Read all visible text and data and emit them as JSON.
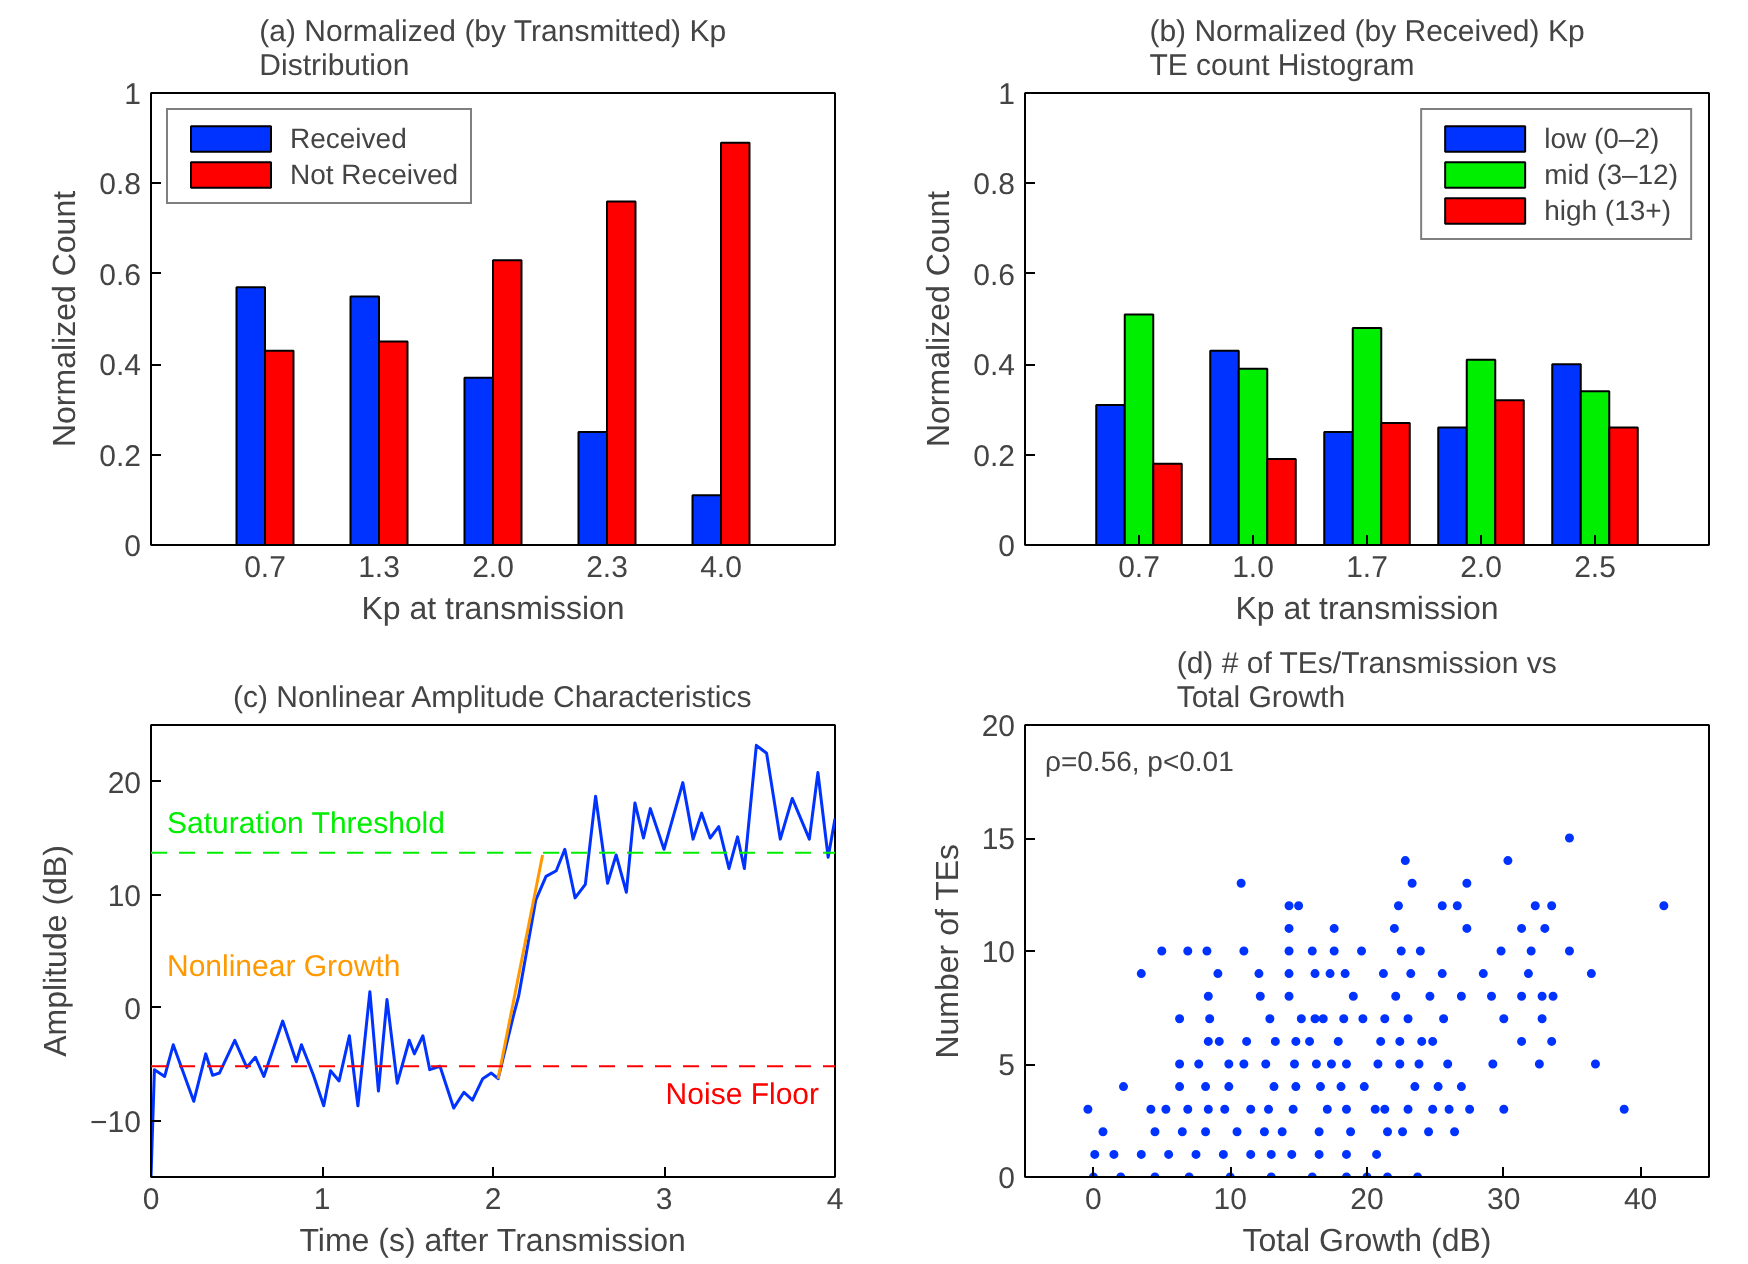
{
  "chart_data": [
    {
      "type": "bar",
      "title": "(a) Normalized (by Transmitted) Kp\nDistribution",
      "xlabel": "Kp at transmission",
      "ylabel": "Normalized Count",
      "categories": [
        "0.7",
        "1.3",
        "2.0",
        "2.3",
        "4.0"
      ],
      "series": [
        {
          "name": "Received",
          "color": "#0033ff",
          "values": [
            0.57,
            0.55,
            0.37,
            0.25,
            0.11
          ]
        },
        {
          "name": "Not Received",
          "color": "#ff0000",
          "values": [
            0.43,
            0.45,
            0.63,
            0.76,
            0.89
          ]
        }
      ],
      "ylim": [
        0,
        1
      ],
      "yticks": [
        0,
        0.2,
        0.4,
        0.6,
        0.8,
        1
      ],
      "legend": "top left"
    },
    {
      "type": "bar",
      "title": "(b) Normalized (by Received) Kp\nTE count Histogram",
      "xlabel": "Kp at transmission",
      "ylabel": "Normalized Count",
      "categories": [
        "0.7",
        "1.0",
        "1.7",
        "2.0",
        "2.5"
      ],
      "series": [
        {
          "name": "low (0–2)",
          "color": "#0033ff",
          "values": [
            0.31,
            0.43,
            0.25,
            0.26,
            0.4
          ]
        },
        {
          "name": "mid (3–12)",
          "color": "#00ee00",
          "values": [
            0.51,
            0.39,
            0.48,
            0.41,
            0.34
          ]
        },
        {
          "name": "high (13+)",
          "color": "#ff0000",
          "values": [
            0.18,
            0.19,
            0.27,
            0.32,
            0.26
          ]
        }
      ],
      "ylim": [
        0,
        1
      ],
      "yticks": [
        0,
        0.2,
        0.4,
        0.6,
        0.8,
        1
      ],
      "legend": "top right"
    },
    {
      "type": "line",
      "title": "(c) Nonlinear Amplitude Characteristics",
      "xlabel": "Time (s) after Transmission",
      "ylabel": "Amplitude (dB)",
      "series": [
        {
          "color": "#0033ff",
          "x": [
            0,
            0.02,
            0.08,
            0.13,
            0.25,
            0.32,
            0.36,
            0.4,
            0.49,
            0.56,
            0.61,
            0.66,
            0.77,
            0.85,
            0.88,
            0.95,
            1.01,
            1.05,
            1.1,
            1.16,
            1.21,
            1.28,
            1.33,
            1.38,
            1.44,
            1.51,
            1.54,
            1.59,
            1.63,
            1.69,
            1.77,
            1.83,
            1.88,
            1.94,
            1.99,
            2.03,
            2.12,
            2.15,
            2.25,
            2.31,
            2.37,
            2.42,
            2.48,
            2.54,
            2.6,
            2.67,
            2.72,
            2.78,
            2.83,
            2.88,
            2.92,
            3.0,
            3.11,
            3.17,
            3.22,
            3.27,
            3.32,
            3.38,
            3.43,
            3.47,
            3.54,
            3.6,
            3.68,
            3.75,
            3.85,
            3.9,
            3.96,
            4.0
          ],
          "values": [
            -15,
            -5.5,
            -6.1,
            -3.3,
            -8.3,
            -4.1,
            -6,
            -5.8,
            -2.9,
            -5.3,
            -4.4,
            -6.1,
            -1.2,
            -4.8,
            -3.3,
            -6,
            -8.7,
            -5.6,
            -6.5,
            -2.5,
            -8.7,
            1.4,
            -7.4,
            0.7,
            -6.7,
            -2.9,
            -4.1,
            -2.5,
            -5.5,
            -5.2,
            -8.9,
            -7.5,
            -8.2,
            -6.3,
            -5.8,
            -6.3,
            -0.7,
            1.0,
            9.5,
            11.6,
            12.1,
            14,
            9.7,
            10.9,
            18.7,
            11,
            13.5,
            10.2,
            18.1,
            15,
            17.6,
            14,
            19.9,
            14.9,
            17.2,
            15,
            16,
            12.3,
            15.1,
            12.3,
            23.2,
            22.5,
            14.9,
            18.5,
            14.9,
            20.8,
            13.3,
            16.7
          ]
        },
        {
          "name": "Nonlinear Growth",
          "color": "#ff9900",
          "x": [
            2.03,
            2.29
          ],
          "values": [
            -6.3,
            13.5
          ]
        }
      ],
      "xlim": [
        0,
        4
      ],
      "xticks": [
        0,
        1,
        2,
        3,
        4
      ],
      "ylim": [
        -15,
        25
      ],
      "yticks": [
        -10,
        0,
        10,
        20
      ],
      "ref_lines": [
        {
          "axis": "y",
          "value": 13.7,
          "label": "Saturation Threshold",
          "color": "#00ee00",
          "line_style": "dashed"
        },
        {
          "axis": "y",
          "value": -5.2,
          "label": "Noise Floor",
          "color": "#ff0000",
          "line_style": "dashed"
        }
      ]
    },
    {
      "type": "scatter",
      "title": "(d) # of TEs/Transmission vs\nTotal Growth",
      "xlabel": "Total Growth (dB)",
      "ylabel": "Number of TEs",
      "marker": "circle",
      "color": "#0033ff",
      "x": [
        34.8,
        22.8,
        30.3,
        10.8,
        23.3,
        27.3,
        14.3,
        15.0,
        22.3,
        25.5,
        26.6,
        32.3,
        33.5,
        41.7,
        14.3,
        17.6,
        22.0,
        27.3,
        31.3,
        33.0,
        5.0,
        6.9,
        8.3,
        11.0,
        14.3,
        16.0,
        17.6,
        19.6,
        22.5,
        23.9,
        29.8,
        32.0,
        34.8,
        3.5,
        9.1,
        12.1,
        14.3,
        16.2,
        17.3,
        18.4,
        21.2,
        23.2,
        25.5,
        28.5,
        31.8,
        36.4,
        8.4,
        12.2,
        14.3,
        19.0,
        22.1,
        24.6,
        26.9,
        29.1,
        31.3,
        32.8,
        33.6,
        6.3,
        8.5,
        12.9,
        15.2,
        16.2,
        16.8,
        18.3,
        19.7,
        21.3,
        23.0,
        25.6,
        30.0,
        32.8,
        8.4,
        9.2,
        11.2,
        13.3,
        14.8,
        15.8,
        17.9,
        21.0,
        22.4,
        24.0,
        24.8,
        31.3,
        33.5,
        6.3,
        7.7,
        9.9,
        11.0,
        12.6,
        14.7,
        16.3,
        17.4,
        18.5,
        20.8,
        22.4,
        23.8,
        25.9,
        29.2,
        32.6,
        36.7,
        2.2,
        6.3,
        8.2,
        9.9,
        13.2,
        14.8,
        16.6,
        18.1,
        19.8,
        23.5,
        25.2,
        26.9,
        -0.4,
        4.2,
        5.3,
        6.9,
        8.4,
        9.6,
        11.5,
        12.8,
        14.6,
        17.1,
        18.5,
        20.6,
        21.3,
        23.0,
        24.8,
        26.0,
        27.5,
        30.0,
        38.8,
        0.7,
        4.5,
        6.5,
        8.2,
        10.5,
        12.5,
        13.8,
        16.5,
        18.8,
        21.5,
        22.6,
        24.5,
        26.4,
        0.1,
        1.5,
        3.5,
        5.5,
        7.5,
        9.5,
        11.5,
        13.0,
        14.5,
        16.5,
        18.5,
        20.7,
        0.0,
        2.0,
        4.5,
        7.0,
        10.0,
        13.0,
        16.0,
        18.5,
        20.0,
        21.5,
        23.7
      ],
      "values": [
        15,
        14,
        14,
        13,
        13,
        13,
        12,
        12,
        12,
        12,
        12,
        12,
        12,
        12,
        11,
        11,
        11,
        11,
        11,
        11,
        10,
        10,
        10,
        10,
        10,
        10,
        10,
        10,
        10,
        10,
        10,
        10,
        10,
        9,
        9,
        9,
        9,
        9,
        9,
        9,
        9,
        9,
        9,
        9,
        9,
        9,
        8,
        8,
        8,
        8,
        8,
        8,
        8,
        8,
        8,
        8,
        8,
        7,
        7,
        7,
        7,
        7,
        7,
        7,
        7,
        7,
        7,
        7,
        7,
        7,
        6,
        6,
        6,
        6,
        6,
        6,
        6,
        6,
        6,
        6,
        6,
        6,
        6,
        5,
        5,
        5,
        5,
        5,
        5,
        5,
        5,
        5,
        5,
        5,
        5,
        5,
        5,
        5,
        5,
        4,
        4,
        4,
        4,
        4,
        4,
        4,
        4,
        4,
        4,
        4,
        4,
        3,
        3,
        3,
        3,
        3,
        3,
        3,
        3,
        3,
        3,
        3,
        3,
        3,
        3,
        3,
        3,
        3,
        3,
        3,
        2,
        2,
        2,
        2,
        2,
        2,
        2,
        2,
        2,
        2,
        2,
        2,
        2,
        1,
        1,
        1,
        1,
        1,
        1,
        1,
        1,
        1,
        1,
        1,
        1,
        0,
        0,
        0,
        0,
        0,
        0,
        0,
        0,
        0,
        0,
        0
      ],
      "xlim": [
        -5,
        45
      ],
      "xticks": [
        0,
        10,
        20,
        30,
        40
      ],
      "ylim": [
        0,
        20
      ],
      "yticks": [
        0,
        5,
        10,
        15,
        20
      ],
      "annotations": [
        "ρ=0.56, p<0.01"
      ]
    }
  ]
}
